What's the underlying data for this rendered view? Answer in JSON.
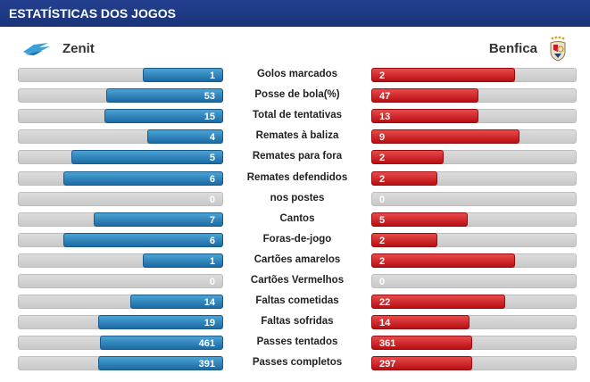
{
  "header": {
    "title": "ESTATÍSTICAS DOS JOGOS"
  },
  "teams": {
    "home": {
      "name": "Zenit",
      "logo": "zenit-logo-icon"
    },
    "away": {
      "name": "Benfica",
      "logo": "benfica-crest-icon"
    }
  },
  "colors": {
    "header": "#1f3a8a",
    "home_bar": "#2b86c2",
    "away_bar": "#d01c20",
    "track": "#d3d3d3"
  },
  "stats": [
    {
      "label": "Golos marcados",
      "home": "1",
      "away": "2",
      "home_fill": 0.39,
      "away_fill": 0.7
    },
    {
      "label": "Posse de bola(%)",
      "home": "53",
      "away": "47",
      "home_fill": 0.57,
      "away_fill": 0.52
    },
    {
      "label": "Total de tentativas",
      "home": "15",
      "away": "13",
      "home_fill": 0.58,
      "away_fill": 0.52
    },
    {
      "label": "Remates à baliza",
      "home": "4",
      "away": "9",
      "home_fill": 0.37,
      "away_fill": 0.72
    },
    {
      "label": "Remates para fora",
      "home": "5",
      "away": "2",
      "home_fill": 0.74,
      "away_fill": 0.35
    },
    {
      "label": "Remates defendidos",
      "home": "6",
      "away": "2",
      "home_fill": 0.78,
      "away_fill": 0.32
    },
    {
      "label": "nos postes",
      "home": "0",
      "away": "0",
      "home_fill": 0,
      "away_fill": 0
    },
    {
      "label": "Cantos",
      "home": "7",
      "away": "5",
      "home_fill": 0.63,
      "away_fill": 0.47
    },
    {
      "label": "Foras-de-jogo",
      "home": "6",
      "away": "2",
      "home_fill": 0.78,
      "away_fill": 0.32
    },
    {
      "label": "Cartões amarelos",
      "home": "1",
      "away": "2",
      "home_fill": 0.39,
      "away_fill": 0.7
    },
    {
      "label": "Cartões Vermelhos",
      "home": "0",
      "away": "0",
      "home_fill": 0,
      "away_fill": 0
    },
    {
      "label": "Faltas cometidas",
      "home": "14",
      "away": "22",
      "home_fill": 0.45,
      "away_fill": 0.65
    },
    {
      "label": "Faltas sofridas",
      "home": "19",
      "away": "14",
      "home_fill": 0.61,
      "away_fill": 0.48
    },
    {
      "label": "Passes tentados",
      "home": "461",
      "away": "361",
      "home_fill": 0.6,
      "away_fill": 0.49
    },
    {
      "label": "Passes completos",
      "home": "391",
      "away": "297",
      "home_fill": 0.61,
      "away_fill": 0.49
    }
  ]
}
